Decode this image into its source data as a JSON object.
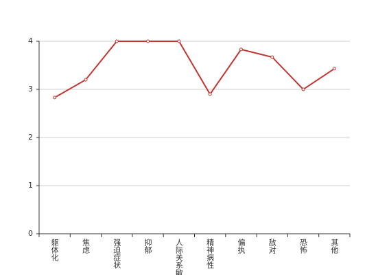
{
  "chart_data": {
    "type": "line",
    "categories": [
      "躯体化",
      "焦虑",
      "强迫症状",
      "抑郁",
      "人际关系敏感",
      "精神病性",
      "偏执",
      "敌对",
      "恐怖",
      "其他"
    ],
    "series": [
      {
        "color": "#c23531",
        "values": [
          2.83,
          3.2,
          4,
          4,
          4,
          2.9,
          3.83,
          3.67,
          3.0,
          3.43
        ]
      }
    ],
    "ylim": [
      0,
      4
    ],
    "yticks": [
      0,
      1,
      2,
      3,
      4
    ],
    "grid": true
  }
}
